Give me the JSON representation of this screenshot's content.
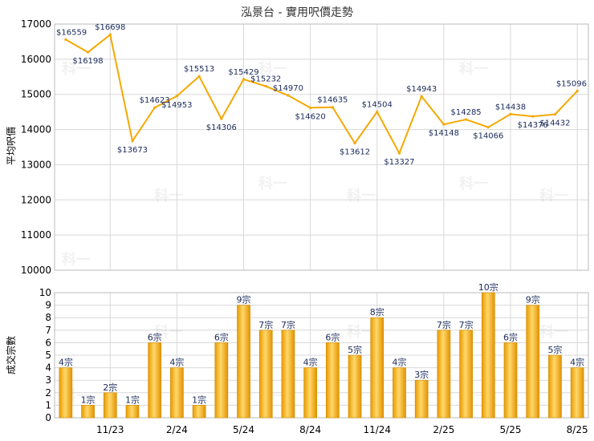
{
  "chart_data": [
    {
      "type": "line",
      "title": "泓景台 - 實用呎價走勢",
      "ylabel": "平均呎價",
      "ylim": [
        10000,
        17000
      ],
      "yticks": [
        "10000",
        "11000",
        "12000",
        "13000",
        "14000",
        "15000",
        "16000",
        "17000"
      ],
      "x_ticks": [
        "11/23",
        "2/24",
        "5/24",
        "8/24",
        "11/24",
        "2/25",
        "5/25",
        "8/25"
      ],
      "color": "#f5a800",
      "values": [
        16559,
        16198,
        16698,
        13673,
        14623,
        14953,
        15513,
        14306,
        15429,
        15232,
        14970,
        14620,
        14635,
        13612,
        14504,
        13327,
        14943,
        14148,
        14285,
        14066,
        14438,
        14376,
        14432,
        15096
      ],
      "labels": [
        "$16559",
        "$16198",
        "$16698",
        "$13673",
        "$14623",
        "$14953",
        "$15513",
        "$14306",
        "$15429",
        "$15232",
        "$14970",
        "$14620",
        "$14635",
        "$13612",
        "$14504",
        "$13327",
        "$14943",
        "$14148",
        "$14285",
        "$14066",
        "$14438",
        "$14376",
        "$14432",
        "$15096"
      ]
    },
    {
      "type": "bar",
      "ylabel": "成交宗數",
      "ylim": [
        0,
        10
      ],
      "yticks": [
        "0",
        "1",
        "2",
        "3",
        "4",
        "5",
        "6",
        "7",
        "8",
        "9",
        "10"
      ],
      "x_ticks": [
        "11/23",
        "2/24",
        "5/24",
        "8/24",
        "11/24",
        "2/25",
        "5/25",
        "8/25"
      ],
      "color": "#f5a800",
      "values": [
        4,
        1,
        2,
        1,
        6,
        4,
        1,
        6,
        9,
        7,
        7,
        4,
        6,
        5,
        8,
        4,
        3,
        7,
        7,
        10,
        6,
        9,
        5,
        4
      ],
      "labels": [
        "4宗",
        "1宗",
        "2宗",
        "1宗",
        "6宗",
        "4宗",
        "1宗",
        "6宗",
        "9宗",
        "7宗",
        "7宗",
        "4宗",
        "6宗",
        "5宗",
        "8宗",
        "4宗",
        "3宗",
        "7宗",
        "7宗",
        "10宗",
        "6宗",
        "9宗",
        "5宗",
        "4宗"
      ]
    }
  ],
  "watermark": "科一"
}
